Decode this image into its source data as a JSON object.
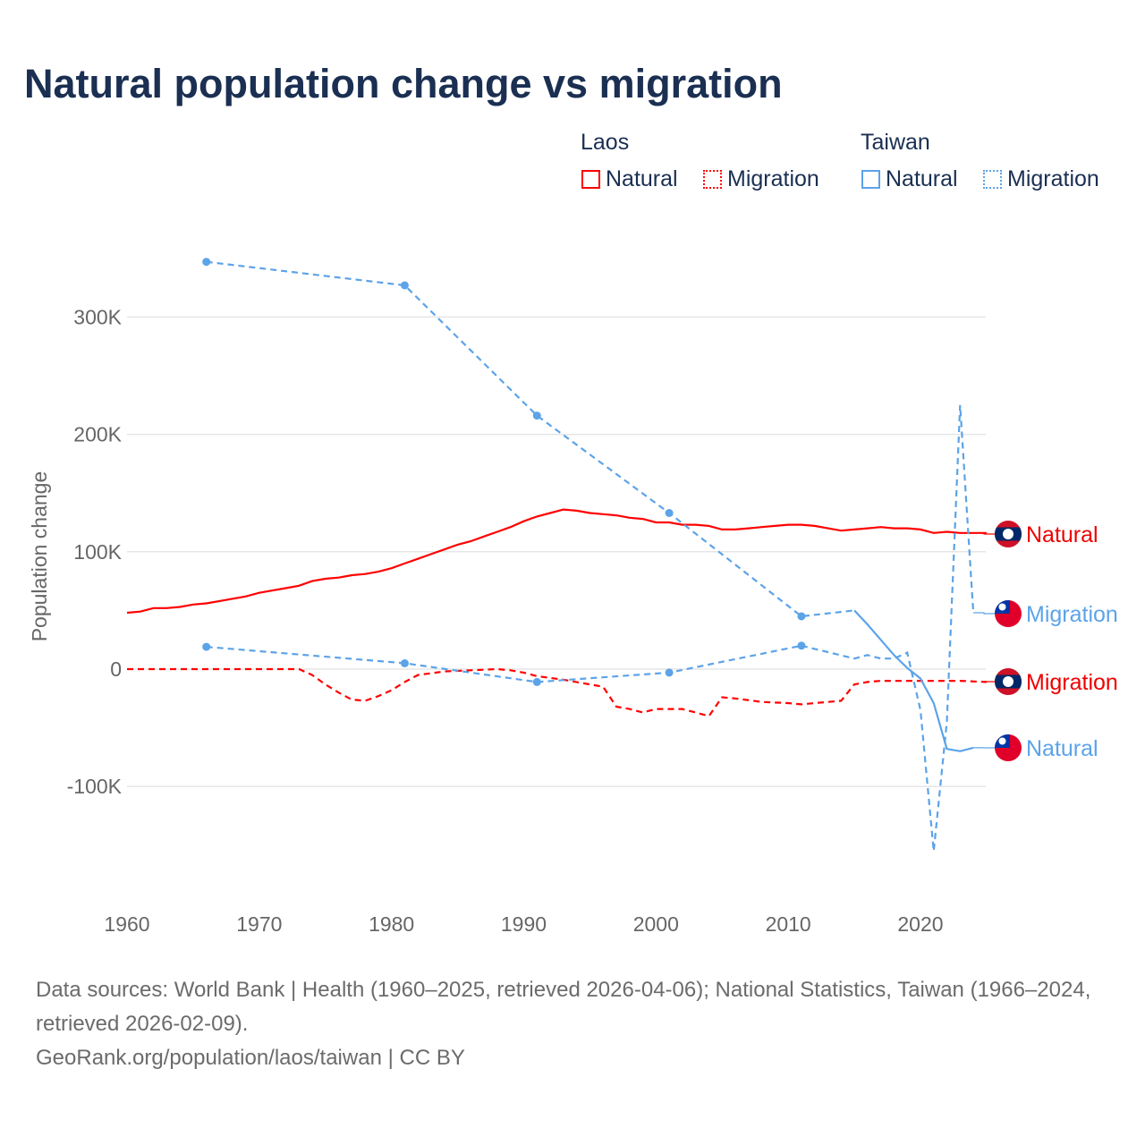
{
  "title": "Natural population change vs migration",
  "legend": {
    "groups": [
      {
        "name": "Laos",
        "items": [
          {
            "label": "Natural",
            "color": "#ff0000",
            "style": "solid"
          },
          {
            "label": "Migration",
            "color": "#ff0000",
            "style": "dotted"
          }
        ]
      },
      {
        "name": "Taiwan",
        "items": [
          {
            "label": "Natural",
            "color": "#5ca3e8",
            "style": "solid"
          },
          {
            "label": "Migration",
            "color": "#5ca3e8",
            "style": "dotted"
          }
        ]
      }
    ]
  },
  "chart_data": {
    "type": "line",
    "ylabel": "Population change",
    "xlim": [
      1960,
      2025
    ],
    "ylim": [
      -175000,
      375000
    ],
    "xticks": [
      1960,
      1970,
      1980,
      1990,
      2000,
      2010,
      2020
    ],
    "xtick_labels": [
      "1960",
      "1970",
      "1980",
      "1990",
      "2000",
      "2010",
      "2020"
    ],
    "yticks": [
      -100000,
      0,
      100000,
      200000,
      300000
    ],
    "ytick_labels": [
      "-100K",
      "0",
      "100K",
      "200K",
      "300K"
    ],
    "grid": true,
    "series": [
      {
        "name": "Laos Natural",
        "end_label": "Natural",
        "color": "#ff0000",
        "dash": false,
        "flag": "laos",
        "points": [
          [
            1960,
            48000
          ],
          [
            1961,
            49000
          ],
          [
            1962,
            52000
          ],
          [
            1963,
            52000
          ],
          [
            1964,
            53000
          ],
          [
            1965,
            55000
          ],
          [
            1966,
            56000
          ],
          [
            1967,
            58000
          ],
          [
            1968,
            60000
          ],
          [
            1969,
            62000
          ],
          [
            1970,
            65000
          ],
          [
            1971,
            67000
          ],
          [
            1972,
            69000
          ],
          [
            1973,
            71000
          ],
          [
            1974,
            75000
          ],
          [
            1975,
            77000
          ],
          [
            1976,
            78000
          ],
          [
            1977,
            80000
          ],
          [
            1978,
            81000
          ],
          [
            1979,
            83000
          ],
          [
            1980,
            86000
          ],
          [
            1981,
            90000
          ],
          [
            1982,
            94000
          ],
          [
            1983,
            98000
          ],
          [
            1984,
            102000
          ],
          [
            1985,
            106000
          ],
          [
            1986,
            109000
          ],
          [
            1987,
            113000
          ],
          [
            1988,
            117000
          ],
          [
            1989,
            121000
          ],
          [
            1990,
            126000
          ],
          [
            1991,
            130000
          ],
          [
            1992,
            133000
          ],
          [
            1993,
            136000
          ],
          [
            1994,
            135000
          ],
          [
            1995,
            133000
          ],
          [
            1996,
            132000
          ],
          [
            1997,
            131000
          ],
          [
            1998,
            129000
          ],
          [
            1999,
            128000
          ],
          [
            2000,
            125000
          ],
          [
            2001,
            125000
          ],
          [
            2002,
            123000
          ],
          [
            2003,
            123000
          ],
          [
            2004,
            122000
          ],
          [
            2005,
            119000
          ],
          [
            2006,
            119000
          ],
          [
            2007,
            120000
          ],
          [
            2008,
            121000
          ],
          [
            2009,
            122000
          ],
          [
            2010,
            123000
          ],
          [
            2011,
            123000
          ],
          [
            2012,
            122000
          ],
          [
            2013,
            120000
          ],
          [
            2014,
            118000
          ],
          [
            2015,
            119000
          ],
          [
            2016,
            120000
          ],
          [
            2017,
            121000
          ],
          [
            2018,
            120000
          ],
          [
            2019,
            120000
          ],
          [
            2020,
            119000
          ],
          [
            2021,
            116000
          ],
          [
            2022,
            117000
          ],
          [
            2023,
            116000
          ],
          [
            2024,
            116000
          ],
          [
            2025,
            116000
          ]
        ]
      },
      {
        "name": "Laos Migration",
        "end_label": "Migration",
        "color": "#ff0000",
        "dash": true,
        "flag": "laos",
        "points": [
          [
            1960,
            0
          ],
          [
            1973,
            0
          ],
          [
            1974,
            -5000
          ],
          [
            1975,
            -13000
          ],
          [
            1976,
            -20000
          ],
          [
            1977,
            -26000
          ],
          [
            1978,
            -27000
          ],
          [
            1979,
            -23000
          ],
          [
            1980,
            -18000
          ],
          [
            1981,
            -11000
          ],
          [
            1982,
            -5000
          ],
          [
            1984,
            -2000
          ],
          [
            1986,
            -1000
          ],
          [
            1988,
            0
          ],
          [
            1989,
            -1000
          ],
          [
            1990,
            -3000
          ],
          [
            1991,
            -6000
          ],
          [
            1993,
            -9000
          ],
          [
            1995,
            -13000
          ],
          [
            1996,
            -15000
          ],
          [
            1997,
            -32000
          ],
          [
            1998,
            -34000
          ],
          [
            1999,
            -37000
          ],
          [
            2000,
            -34000
          ],
          [
            2002,
            -34000
          ],
          [
            2004,
            -40000
          ],
          [
            2005,
            -24000
          ],
          [
            2006,
            -25000
          ],
          [
            2008,
            -28000
          ],
          [
            2010,
            -29000
          ],
          [
            2011,
            -30000
          ],
          [
            2012,
            -29000
          ],
          [
            2014,
            -27000
          ],
          [
            2015,
            -13000
          ],
          [
            2016,
            -11000
          ],
          [
            2017,
            -10000
          ],
          [
            2020,
            -10000
          ],
          [
            2023,
            -10000
          ],
          [
            2025,
            -11000
          ]
        ]
      },
      {
        "name": "Taiwan Natural",
        "end_label": "Natural",
        "color": "#5ca3e8",
        "dash": false,
        "flag": "taiwan",
        "sparse_until": 2015,
        "points": [
          [
            1966,
            347000
          ],
          [
            1981,
            327000
          ],
          [
            1991,
            216000
          ],
          [
            2001,
            133000
          ],
          [
            2011,
            45000
          ],
          [
            2015,
            50000
          ],
          [
            2016,
            38000
          ],
          [
            2017,
            25000
          ],
          [
            2018,
            12000
          ],
          [
            2019,
            1000
          ],
          [
            2020,
            -8000
          ],
          [
            2021,
            -29000
          ],
          [
            2022,
            -68000
          ],
          [
            2023,
            -70000
          ],
          [
            2024,
            -67000
          ]
        ]
      },
      {
        "name": "Taiwan Migration",
        "end_label": "Migration",
        "color": "#5ca3e8",
        "dash": true,
        "flag": "taiwan",
        "sparse_until": 2011,
        "points": [
          [
            1966,
            19000
          ],
          [
            1981,
            5000
          ],
          [
            1991,
            -11000
          ],
          [
            2001,
            -3000
          ],
          [
            2011,
            20000
          ],
          [
            2015,
            9000
          ],
          [
            2016,
            12000
          ],
          [
            2017,
            9000
          ],
          [
            2018,
            9000
          ],
          [
            2019,
            14000
          ],
          [
            2020,
            -35000
          ],
          [
            2021,
            -155000
          ],
          [
            2022,
            -45000
          ],
          [
            2023,
            225000
          ],
          [
            2024,
            48000
          ]
        ]
      }
    ]
  },
  "source": {
    "line1": "Data sources: World Bank | Health (1960–2025, retrieved 2026-04-06); National Statistics, Taiwan (1966–2024, retrieved 2026-02-09).",
    "line2": "GeoRank.org/population/laos/taiwan | CC BY"
  }
}
